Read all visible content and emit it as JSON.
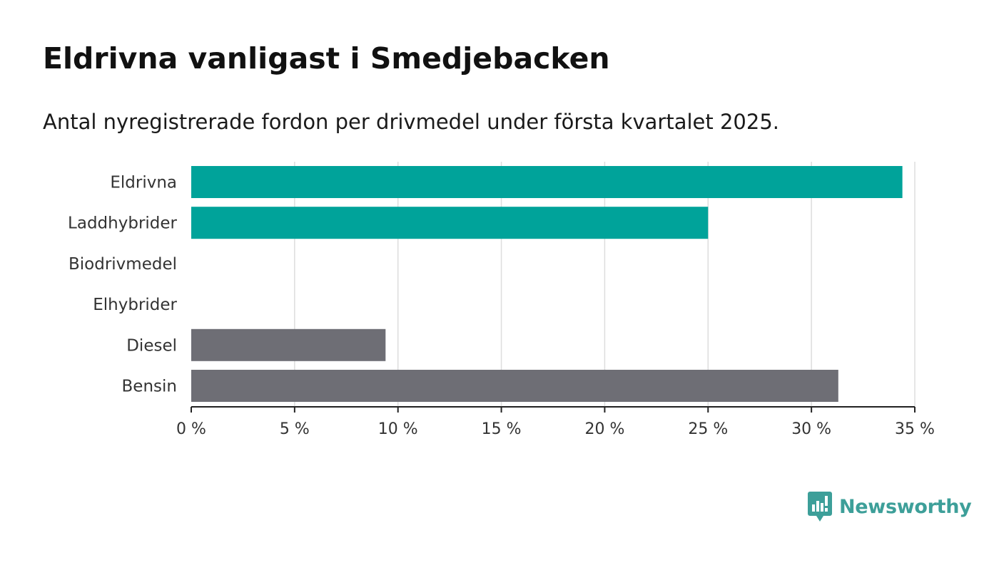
{
  "header": {
    "title": "Eldrivna vanligast i Smedjebacken",
    "subtitle": "Antal nyregistrerade fordon per drivmedel under första kvartalet 2025."
  },
  "chart_data": {
    "type": "bar",
    "orientation": "horizontal",
    "title": "Eldrivna vanligast i Smedjebacken",
    "subtitle": "Antal nyregistrerade fordon per drivmedel under första kvartalet 2025.",
    "categories": [
      "Eldrivna",
      "Laddhybrider",
      "Biodrivmedel",
      "Elhybrider",
      "Diesel",
      "Bensin"
    ],
    "values": [
      34.4,
      25.0,
      0,
      0,
      9.4,
      31.3
    ],
    "bar_colors": [
      "#00a39a",
      "#00a39a",
      "#00a39a",
      "#00a39a",
      "#6e6e75",
      "#6e6e75"
    ],
    "xlim": [
      0,
      35
    ],
    "xticks": [
      0,
      5,
      10,
      15,
      20,
      25,
      30,
      35
    ],
    "xtick_labels": [
      "0 %",
      "5 %",
      "10 %",
      "15 %",
      "20 %",
      "25 %",
      "30 %",
      "35 %"
    ],
    "xlabel": "",
    "ylabel": "",
    "grid": true,
    "legend": "none"
  },
  "brand": {
    "name": "Newsworthy",
    "color": "#3d9f99",
    "icon": "bar-chart-speech-bubble-icon"
  }
}
